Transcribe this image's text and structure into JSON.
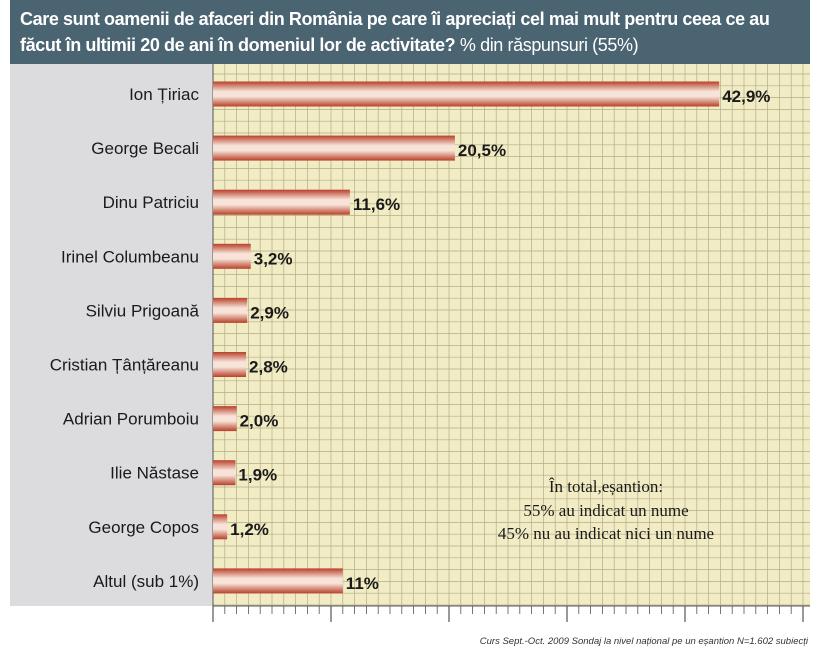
{
  "chart_data": {
    "type": "bar",
    "orientation": "horizontal",
    "title": "Care sunt oamenii de afaceri din România pe care îi apreciați cel mai mult pentru ceea ce au făcut în ultimii 20 de ani în domeniul lor de activitate?",
    "subtitle": "% din răspunsuri (55%)",
    "categories": [
      "Ion Țiriac",
      "George Becali",
      "Dinu Patriciu",
      "Irinel Columbeanu",
      "Silviu Prigoană",
      "Cristian Țânțăreanu",
      "Adrian Porumboiu",
      "Ilie Năstase",
      "George Copos",
      "Altul (sub 1%)"
    ],
    "values": [
      42.9,
      20.5,
      11.6,
      3.2,
      2.9,
      2.8,
      2.0,
      1.9,
      1.2,
      11
    ],
    "value_labels": [
      "42,9%",
      "20,5%",
      "11,6%",
      "3,2%",
      "2,9%",
      "2,8%",
      "2,0%",
      "1,9%",
      "1,2%",
      "11%"
    ],
    "xlim": [
      0,
      50
    ],
    "xlabel": "",
    "ylabel": "",
    "grid": true,
    "annotation": [
      "În total,eșantion:",
      "55% au indicat un nume",
      "45% nu au indicat nici un nume"
    ],
    "footnote": "Curs Sept.-Oct. 2009 Sondaj la nivel național pe un eșantion N=1.602 subiecți",
    "colors": {
      "header_bg": "#4a6472",
      "header_text": "#ffffff",
      "label_panel": "#dcdcde",
      "plot_bg": "#f1ecc4",
      "grid": "#b3ac8a",
      "bar_dark": "#b8402a",
      "bar_light": "#f7e3d8"
    }
  }
}
